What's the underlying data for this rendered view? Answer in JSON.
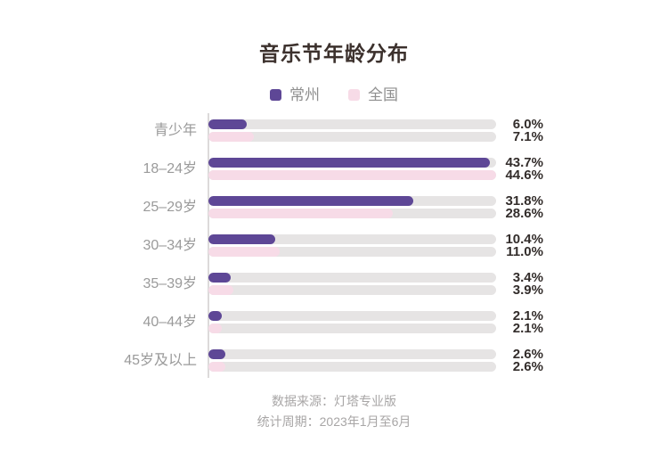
{
  "title": "音乐节年龄分布",
  "legend": [
    {
      "name": "常州",
      "color": "#5E4796"
    },
    {
      "name": "全国",
      "color": "#F7DBE7"
    }
  ],
  "chart_data": {
    "type": "bar",
    "orientation": "horizontal",
    "title": "音乐节年龄分布",
    "categories": [
      "青少年",
      "18–24岁",
      "25–29岁",
      "30–34岁",
      "35–39岁",
      "40–44岁",
      "45岁及以上"
    ],
    "series": [
      {
        "name": "常州",
        "color": "#5E4796",
        "values": [
          6.0,
          43.7,
          31.8,
          10.4,
          3.4,
          2.1,
          2.6
        ]
      },
      {
        "name": "全国",
        "color": "#F7DBE7",
        "values": [
          7.1,
          44.6,
          28.6,
          11.0,
          3.9,
          2.1,
          2.6
        ]
      }
    ],
    "value_suffix": "%",
    "xlim": [
      0,
      44.6
    ],
    "track_color": "#E6E4E4",
    "grid": false,
    "legend_position": "top",
    "value_labels": "right"
  },
  "footer": {
    "source": "数据来源：灯塔专业版",
    "period": "统计周期：2023年1月至6月"
  }
}
